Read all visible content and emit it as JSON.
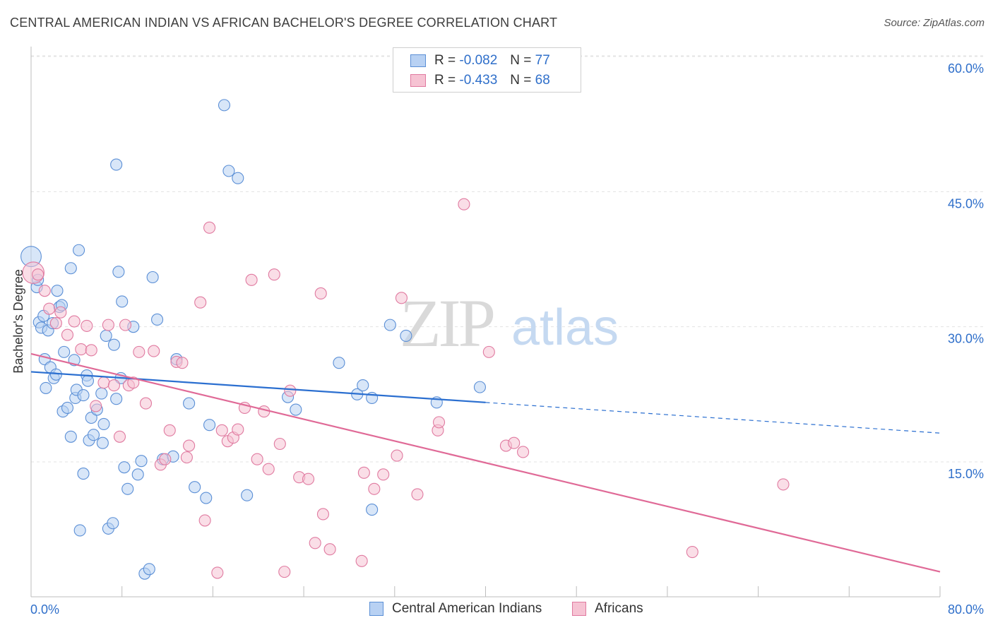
{
  "title": "CENTRAL AMERICAN INDIAN VS AFRICAN BACHELOR'S DEGREE CORRELATION CHART",
  "source": "Source: ZipAtlas.com",
  "watermark": {
    "zip": "ZIP",
    "atlas": "atlas"
  },
  "legend": {
    "r_label": "R =",
    "n_label": "N =",
    "series": [
      {
        "name": "Central American Indians",
        "r": "-0.082",
        "n": "77",
        "color": "#5b8fd6",
        "fill": "#b8d1f3"
      },
      {
        "name": "Africans",
        "r": "-0.433",
        "n": "68",
        "color": "#e07aa0",
        "fill": "#f6c3d3"
      }
    ]
  },
  "colors": {
    "accent_text": "#2f6fca",
    "blue_line": "#2b6fd0",
    "pink_line": "#e06a97"
  },
  "chart_data": {
    "type": "scatter",
    "title": "CENTRAL AMERICAN INDIAN VS AFRICAN BACHELOR'S DEGREE CORRELATION CHART",
    "xlabel": "",
    "ylabel": "Bachelor's Degree",
    "xlim": [
      0,
      80
    ],
    "ylim": [
      0,
      63
    ],
    "x_tick_labels": [
      "0.0%",
      "80.0%"
    ],
    "y_ticks": [
      15,
      30,
      45,
      60
    ],
    "y_tick_labels": [
      "15.0%",
      "30.0%",
      "45.0%",
      "60.0%"
    ],
    "grid": true,
    "legend_position": "top-center",
    "series": [
      {
        "name": "Central American Indians",
        "trend": {
          "x_solid": [
            0,
            40
          ],
          "y_solid": [
            25.0,
            21.6
          ],
          "x_dashed": [
            40,
            80
          ],
          "y_dashed": [
            21.6,
            18.2
          ]
        },
        "points": [
          [
            0.0,
            37.8,
            1.8
          ],
          [
            0.5,
            34.4,
            1
          ],
          [
            0.6,
            35.2,
            1
          ],
          [
            0.7,
            30.5,
            1
          ],
          [
            0.9,
            29.9,
            1
          ],
          [
            1.1,
            31.2,
            1
          ],
          [
            1.2,
            26.4,
            1
          ],
          [
            1.3,
            23.2,
            1
          ],
          [
            1.5,
            29.6,
            1
          ],
          [
            1.7,
            25.5,
            1
          ],
          [
            1.9,
            30.4,
            1
          ],
          [
            2.0,
            24.3,
            1
          ],
          [
            2.2,
            24.7,
            1
          ],
          [
            2.3,
            34.0,
            1
          ],
          [
            2.5,
            32.2,
            1
          ],
          [
            2.7,
            32.4,
            1
          ],
          [
            2.8,
            20.6,
            1
          ],
          [
            2.9,
            27.2,
            1
          ],
          [
            3.2,
            21.0,
            1
          ],
          [
            3.5,
            36.5,
            1
          ],
          [
            3.5,
            17.8,
            1
          ],
          [
            3.8,
            26.3,
            1
          ],
          [
            3.9,
            22.1,
            1
          ],
          [
            4.0,
            23.0,
            1
          ],
          [
            4.2,
            38.5,
            1
          ],
          [
            4.3,
            7.4,
            1
          ],
          [
            4.6,
            22.4,
            1
          ],
          [
            4.6,
            13.7,
            1
          ],
          [
            4.9,
            24.6,
            1
          ],
          [
            5.0,
            24.0,
            1
          ],
          [
            5.1,
            17.4,
            1
          ],
          [
            5.3,
            19.9,
            1
          ],
          [
            5.5,
            18.0,
            1
          ],
          [
            5.8,
            20.8,
            1
          ],
          [
            6.2,
            22.6,
            1
          ],
          [
            6.3,
            17.1,
            1
          ],
          [
            6.4,
            19.2,
            1
          ],
          [
            6.6,
            29.0,
            1
          ],
          [
            6.8,
            7.6,
            1
          ],
          [
            7.2,
            8.2,
            1
          ],
          [
            7.3,
            28.0,
            1
          ],
          [
            7.5,
            22.0,
            1
          ],
          [
            7.5,
            48.0,
            1
          ],
          [
            7.7,
            36.1,
            1
          ],
          [
            7.9,
            24.3,
            1
          ],
          [
            8.0,
            32.8,
            1
          ],
          [
            8.2,
            14.4,
            1
          ],
          [
            8.5,
            12.0,
            1
          ],
          [
            9.0,
            30.0,
            1
          ],
          [
            9.4,
            13.6,
            1
          ],
          [
            9.7,
            15.1,
            1
          ],
          [
            10.0,
            2.6,
            1
          ],
          [
            10.4,
            3.1,
            1
          ],
          [
            10.7,
            35.5,
            1
          ],
          [
            11.1,
            30.8,
            1
          ],
          [
            11.6,
            15.3,
            1
          ],
          [
            12.5,
            15.6,
            1
          ],
          [
            12.8,
            26.4,
            1
          ],
          [
            13.9,
            21.5,
            1
          ],
          [
            14.4,
            12.2,
            1
          ],
          [
            15.4,
            11.0,
            1
          ],
          [
            15.7,
            19.1,
            1
          ],
          [
            17.0,
            54.6,
            1
          ],
          [
            17.4,
            47.3,
            1
          ],
          [
            18.2,
            46.5,
            1
          ],
          [
            19.0,
            11.3,
            1
          ],
          [
            22.6,
            22.2,
            1
          ],
          [
            23.3,
            20.8,
            1
          ],
          [
            27.1,
            26.0,
            1
          ],
          [
            28.7,
            22.5,
            1
          ],
          [
            29.2,
            23.5,
            1
          ],
          [
            30.0,
            22.1,
            1
          ],
          [
            30.0,
            9.7,
            1
          ],
          [
            31.6,
            30.2,
            1
          ],
          [
            33.0,
            29.0,
            1
          ],
          [
            35.7,
            21.6,
            1
          ],
          [
            39.5,
            23.3,
            1
          ]
        ]
      },
      {
        "name": "Africans",
        "trend": {
          "x": [
            0,
            80
          ],
          "y": [
            27.0,
            2.8
          ]
        },
        "points": [
          [
            0.2,
            36.0,
            1.9
          ],
          [
            0.6,
            35.8,
            1
          ],
          [
            1.2,
            34.0,
            1
          ],
          [
            1.6,
            32.0,
            1
          ],
          [
            2.2,
            30.4,
            1
          ],
          [
            2.6,
            31.6,
            1
          ],
          [
            3.2,
            29.1,
            1
          ],
          [
            3.8,
            30.6,
            1
          ],
          [
            4.4,
            27.5,
            1
          ],
          [
            4.9,
            30.1,
            1
          ],
          [
            5.3,
            27.4,
            1
          ],
          [
            5.7,
            21.2,
            1
          ],
          [
            6.4,
            23.8,
            1
          ],
          [
            6.8,
            30.2,
            1
          ],
          [
            7.3,
            23.5,
            1
          ],
          [
            7.8,
            17.8,
            1
          ],
          [
            8.3,
            30.2,
            1
          ],
          [
            8.6,
            23.5,
            1
          ],
          [
            9.0,
            23.8,
            1
          ],
          [
            9.5,
            27.2,
            1
          ],
          [
            10.1,
            21.5,
            1
          ],
          [
            10.8,
            27.3,
            1
          ],
          [
            11.4,
            14.7,
            1
          ],
          [
            11.8,
            15.3,
            1
          ],
          [
            12.2,
            18.5,
            1
          ],
          [
            12.8,
            26.1,
            1
          ],
          [
            13.3,
            26.0,
            1
          ],
          [
            13.7,
            15.5,
            1
          ],
          [
            13.9,
            16.8,
            1
          ],
          [
            14.9,
            32.7,
            1
          ],
          [
            15.3,
            8.5,
            1
          ],
          [
            15.7,
            41.0,
            1
          ],
          [
            16.4,
            2.7,
            1
          ],
          [
            16.8,
            18.5,
            1
          ],
          [
            17.3,
            17.3,
            1
          ],
          [
            17.8,
            17.7,
            1
          ],
          [
            18.2,
            18.6,
            1
          ],
          [
            18.8,
            21.0,
            1
          ],
          [
            19.4,
            35.2,
            1
          ],
          [
            19.9,
            15.3,
            1
          ],
          [
            20.5,
            20.6,
            1
          ],
          [
            20.9,
            14.2,
            1
          ],
          [
            21.4,
            35.8,
            1
          ],
          [
            21.9,
            17.0,
            1
          ],
          [
            22.3,
            2.8,
            1
          ],
          [
            22.8,
            22.9,
            1
          ],
          [
            23.6,
            13.3,
            1
          ],
          [
            24.4,
            13.1,
            1
          ],
          [
            25.0,
            6.0,
            1
          ],
          [
            25.5,
            33.7,
            1
          ],
          [
            25.7,
            9.2,
            1
          ],
          [
            26.3,
            5.3,
            1
          ],
          [
            29.1,
            4.0,
            1
          ],
          [
            29.3,
            13.8,
            1
          ],
          [
            30.2,
            12.0,
            1
          ],
          [
            31.0,
            13.6,
            1
          ],
          [
            32.2,
            15.7,
            1
          ],
          [
            32.6,
            33.2,
            1
          ],
          [
            34.0,
            11.4,
            1
          ],
          [
            35.8,
            18.5,
            1
          ],
          [
            35.9,
            19.4,
            1
          ],
          [
            38.1,
            43.6,
            1
          ],
          [
            40.3,
            27.2,
            1
          ],
          [
            41.8,
            16.8,
            1
          ],
          [
            42.5,
            17.1,
            1
          ],
          [
            43.3,
            16.1,
            1
          ],
          [
            58.2,
            5.0,
            1
          ],
          [
            66.2,
            12.5,
            1
          ]
        ]
      }
    ]
  }
}
